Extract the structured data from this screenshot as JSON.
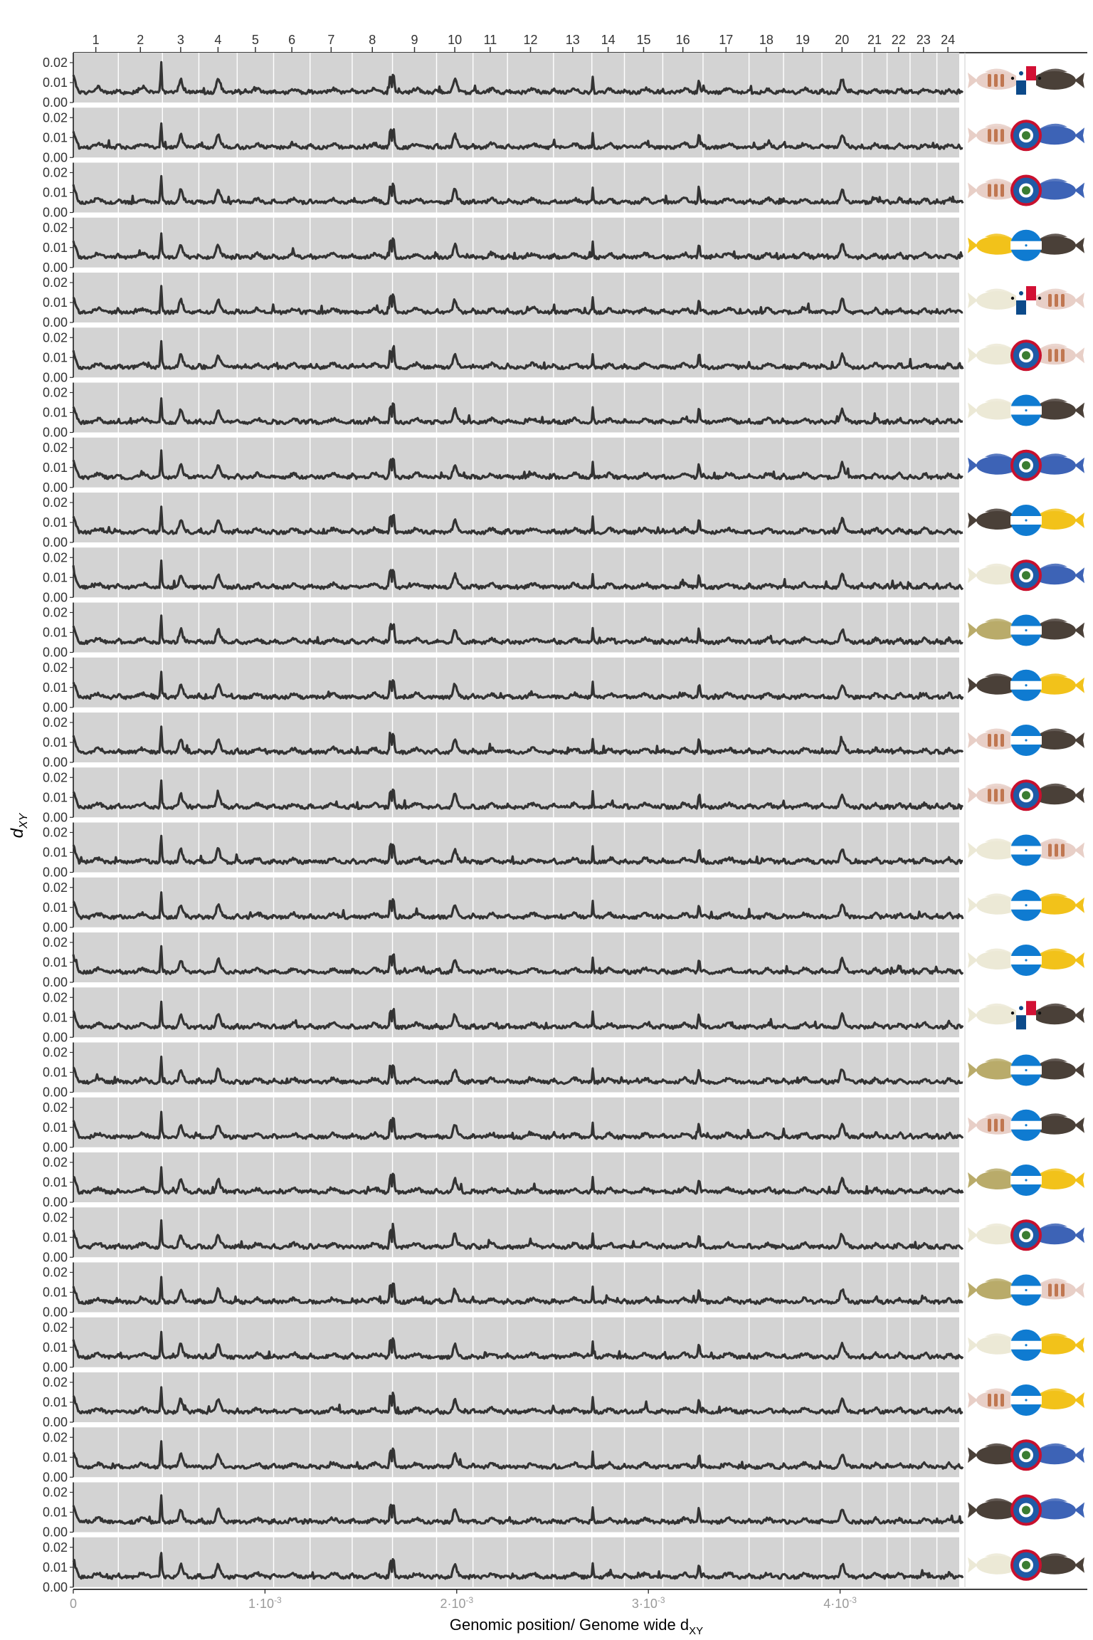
{
  "chart_data": {
    "type": "line",
    "xlabel": "Genomic position/ Genome wide d",
    "xlabel_sub": "XY",
    "ylabel": "d",
    "ylabel_sub": "XY",
    "ylim": [
      0,
      0.025
    ],
    "xlim": [
      0,
      0.00464
    ],
    "y_ticks": [
      "0.00",
      "0.01",
      "0.02"
    ],
    "y_tick_values": [
      0.0,
      0.01,
      0.02
    ],
    "x_ticks": [
      {
        "value": 0,
        "mant": "0",
        "exp": ""
      },
      {
        "value": 0.001,
        "mant": "1·10",
        "exp": "-3"
      },
      {
        "value": 0.002,
        "mant": "2·10",
        "exp": "-3"
      },
      {
        "value": 0.003,
        "mant": "3·10",
        "exp": "-3"
      },
      {
        "value": 0.004,
        "mant": "4·10",
        "exp": "-3"
      }
    ],
    "chromosomes": [
      {
        "label": "1",
        "start": 0.0,
        "end": 0.000235
      },
      {
        "label": "2",
        "start": 0.000235,
        "end": 0.000465
      },
      {
        "label": "3",
        "start": 0.000465,
        "end": 0.000655
      },
      {
        "label": "4",
        "start": 0.000655,
        "end": 0.000855
      },
      {
        "label": "5",
        "start": 0.000855,
        "end": 0.001045
      },
      {
        "label": "6",
        "start": 0.001045,
        "end": 0.001235
      },
      {
        "label": "7",
        "start": 0.001235,
        "end": 0.001455
      },
      {
        "label": "8",
        "start": 0.001455,
        "end": 0.001665
      },
      {
        "label": "9",
        "start": 0.001665,
        "end": 0.001895
      },
      {
        "label": "10",
        "start": 0.001895,
        "end": 0.002085
      },
      {
        "label": "11",
        "start": 0.002085,
        "end": 0.002265
      },
      {
        "label": "12",
        "start": 0.002265,
        "end": 0.002505
      },
      {
        "label": "13",
        "start": 0.002505,
        "end": 0.002705
      },
      {
        "label": "14",
        "start": 0.002705,
        "end": 0.002875
      },
      {
        "label": "15",
        "start": 0.002875,
        "end": 0.003075
      },
      {
        "label": "16",
        "start": 0.003075,
        "end": 0.003285
      },
      {
        "label": "17",
        "start": 0.003285,
        "end": 0.003525
      },
      {
        "label": "18",
        "start": 0.003525,
        "end": 0.003705
      },
      {
        "label": "19",
        "start": 0.003705,
        "end": 0.003905
      },
      {
        "label": "20",
        "start": 0.003905,
        "end": 0.004115
      },
      {
        "label": "21",
        "start": 0.004115,
        "end": 0.004245
      },
      {
        "label": "22",
        "start": 0.004245,
        "end": 0.004365
      },
      {
        "label": "23",
        "start": 0.004365,
        "end": 0.004505
      },
      {
        "label": "24",
        "start": 0.004505,
        "end": 0.00462
      }
    ],
    "panel_count": 28,
    "panel_bg": "#d3d3d3",
    "line_color": "#333333",
    "grid": false,
    "legend": "none",
    "series_description_values": {
      "baseline": 0.005,
      "peak_chromosome": "2",
      "peak_value": 0.021
    }
  },
  "colors": {
    "fish_pink": "#e8cfc7",
    "fish_orange": "#b9673c",
    "fish_dark": "#4a4038",
    "fish_blue": "#3d63b6",
    "fish_yellow": "#f2c21a",
    "fish_cream": "#ece9d6",
    "fish_olive": "#b9ab6a",
    "flag_belize_blue": "#1f5aa6",
    "flag_belize_red": "#c8102e",
    "flag_honduras_blue": "#0f7bd1",
    "flag_panama_red": "#d21034",
    "flag_panama_blue": "#0c4a8a"
  },
  "pairs": [
    {
      "left": "pink",
      "flag": "panama",
      "right": "dark"
    },
    {
      "left": "pink",
      "flag": "belize",
      "right": "blue"
    },
    {
      "left": "pink",
      "flag": "belize",
      "right": "blue"
    },
    {
      "left": "yellow",
      "flag": "honduras",
      "right": "dark"
    },
    {
      "left": "cream",
      "flag": "panama",
      "right": "pink"
    },
    {
      "left": "cream",
      "flag": "belize",
      "right": "pink"
    },
    {
      "left": "cream",
      "flag": "honduras",
      "right": "dark"
    },
    {
      "left": "blue",
      "flag": "belize",
      "right": "blue"
    },
    {
      "left": "dark",
      "flag": "honduras",
      "right": "yellow"
    },
    {
      "left": "cream",
      "flag": "belize",
      "right": "blue"
    },
    {
      "left": "olive",
      "flag": "honduras",
      "right": "dark"
    },
    {
      "left": "dark",
      "flag": "honduras",
      "right": "yellow"
    },
    {
      "left": "pink",
      "flag": "honduras",
      "right": "dark"
    },
    {
      "left": "pink",
      "flag": "belize",
      "right": "dark"
    },
    {
      "left": "cream",
      "flag": "honduras",
      "right": "pink"
    },
    {
      "left": "cream",
      "flag": "honduras",
      "right": "yellow"
    },
    {
      "left": "cream",
      "flag": "honduras",
      "right": "yellow"
    },
    {
      "left": "cream",
      "flag": "panama",
      "right": "dark"
    },
    {
      "left": "olive",
      "flag": "honduras",
      "right": "dark"
    },
    {
      "left": "pink",
      "flag": "honduras",
      "right": "dark"
    },
    {
      "left": "olive",
      "flag": "honduras",
      "right": "yellow"
    },
    {
      "left": "cream",
      "flag": "belize",
      "right": "blue"
    },
    {
      "left": "olive",
      "flag": "honduras",
      "right": "pink"
    },
    {
      "left": "cream",
      "flag": "honduras",
      "right": "yellow"
    },
    {
      "left": "pink",
      "flag": "honduras",
      "right": "yellow"
    },
    {
      "left": "dark",
      "flag": "belize",
      "right": "blue"
    },
    {
      "left": "dark",
      "flag": "belize",
      "right": "blue"
    },
    {
      "left": "cream",
      "flag": "belize",
      "right": "dark"
    }
  ]
}
